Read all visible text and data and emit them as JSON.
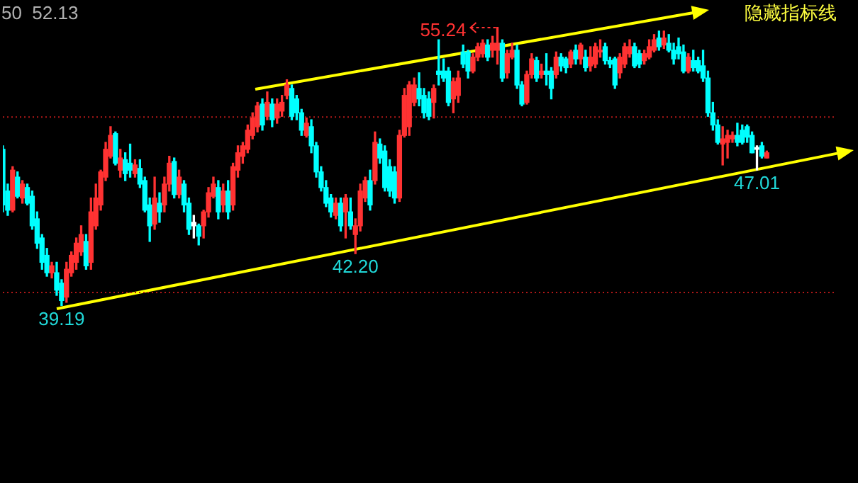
{
  "chart_data": {
    "type": "candlestick",
    "categories": [
      null,
      null,
      null,
      null,
      null,
      null,
      null,
      null,
      null,
      null,
      null,
      null,
      null,
      null,
      null,
      null,
      null,
      null,
      null,
      null,
      null,
      null,
      null,
      null,
      null,
      null,
      null,
      null,
      null,
      null,
      null,
      null,
      null,
      null,
      null,
      null,
      null,
      null,
      null,
      null,
      null,
      null,
      null,
      null,
      null,
      null,
      null,
      null,
      null,
      null,
      null,
      null,
      null,
      null,
      null,
      null,
      null,
      null,
      null,
      null,
      null,
      null,
      null,
      null,
      null,
      null,
      null,
      null,
      null,
      null,
      null,
      null,
      null,
      null,
      null,
      null,
      null,
      null,
      null,
      null,
      null,
      null,
      null,
      null,
      null,
      null,
      null,
      null,
      null,
      null,
      null,
      null,
      null,
      null,
      null,
      null,
      null,
      null,
      null,
      null,
      null,
      null,
      null,
      null,
      null,
      null,
      null,
      null,
      null,
      null,
      null,
      null,
      null,
      null,
      null,
      null,
      null,
      null,
      null,
      null,
      null,
      null,
      null,
      null,
      null,
      null,
      null,
      null,
      null,
      null,
      null,
      null,
      null,
      null,
      null,
      null,
      null,
      null,
      null,
      null,
      null,
      null,
      null,
      null,
      null,
      null,
      null,
      null,
      null,
      null,
      null,
      null,
      null,
      null,
      null,
      null,
      null,
      null,
      null,
      null,
      null,
      null,
      null,
      null,
      null,
      null,
      null,
      null,
      null,
      null,
      null
    ],
    "ohlc": [
      [
        48.2,
        48.4,
        44.6,
        45.0
      ],
      [
        45.8,
        46.2,
        44.4,
        44.7
      ],
      [
        44.7,
        47.2,
        44.6,
        47.0
      ],
      [
        46.6,
        46.9,
        45.4,
        45.5
      ],
      [
        45.4,
        46.4,
        45.1,
        46.2
      ],
      [
        46.0,
        46.2,
        45.0,
        45.1
      ],
      [
        45.5,
        45.8,
        43.6,
        43.8
      ],
      [
        44.2,
        44.6,
        42.5,
        42.8
      ],
      [
        43.1,
        43.3,
        41.3,
        41.7
      ],
      [
        42.1,
        42.5,
        40.9,
        41.1
      ],
      [
        41.1,
        41.7,
        40.8,
        41.5
      ],
      [
        41.1,
        41.7,
        39.8,
        40.1
      ],
      [
        40.5,
        40.7,
        39.19,
        39.5
      ],
      [
        39.7,
        41.7,
        39.4,
        41.3
      ],
      [
        41.1,
        42.3,
        40.9,
        42.1
      ],
      [
        41.7,
        43.1,
        41.3,
        42.8
      ],
      [
        42.3,
        43.8,
        42.1,
        43.3
      ],
      [
        42.9,
        43.3,
        41.3,
        41.5
      ],
      [
        41.7,
        45.4,
        41.3,
        44.6
      ],
      [
        43.8,
        46.2,
        43.6,
        45.4
      ],
      [
        45.0,
        47.0,
        44.7,
        46.9
      ],
      [
        46.6,
        48.6,
        46.4,
        48.2
      ],
      [
        47.8,
        49.5,
        47.7,
        49.0
      ],
      [
        49.1,
        49.2,
        47.3,
        47.4
      ],
      [
        47.0,
        48.2,
        46.6,
        47.7
      ],
      [
        47.6,
        48.0,
        46.4,
        46.8
      ],
      [
        47.4,
        48.5,
        46.6,
        47.0
      ],
      [
        46.8,
        47.6,
        46.6,
        47.3
      ],
      [
        47.1,
        47.6,
        46.0,
        46.2
      ],
      [
        46.4,
        46.6,
        44.6,
        44.7
      ],
      [
        45.0,
        45.4,
        42.9,
        43.8
      ],
      [
        43.9,
        46.6,
        43.6,
        45.4
      ],
      [
        45.1,
        45.7,
        44.0,
        44.6
      ],
      [
        45.0,
        46.6,
        44.6,
        46.2
      ],
      [
        46.2,
        47.8,
        45.8,
        47.4
      ],
      [
        47.5,
        47.7,
        45.4,
        45.6
      ],
      [
        45.6,
        47.0,
        45.4,
        46.6
      ],
      [
        46.2,
        46.4,
        44.6,
        45.0
      ],
      [
        45.1,
        45.4,
        43.3,
        43.6
      ],
      [
        44.0,
        44.4,
        43.1,
        43.8
      ],
      [
        43.8,
        43.9,
        42.7,
        43.2
      ],
      [
        43.8,
        44.7,
        43.1,
        44.6
      ],
      [
        44.6,
        46.0,
        44.3,
        45.7
      ],
      [
        45.5,
        46.6,
        45.4,
        46.2
      ],
      [
        46.0,
        46.4,
        44.2,
        44.6
      ],
      [
        45.0,
        46.2,
        44.6,
        45.8
      ],
      [
        45.8,
        46.4,
        44.2,
        44.6
      ],
      [
        45.0,
        47.4,
        44.7,
        47.2
      ],
      [
        47.0,
        48.4,
        46.6,
        48.0
      ],
      [
        47.8,
        48.6,
        47.4,
        48.4
      ],
      [
        48.2,
        49.6,
        48.0,
        49.3
      ],
      [
        49.0,
        50.3,
        48.8,
        50.0
      ],
      [
        49.5,
        50.9,
        49.2,
        50.7
      ],
      [
        50.8,
        51.1,
        49.3,
        49.6
      ],
      [
        50.1,
        51.5,
        49.9,
        50.9
      ],
      [
        50.8,
        51.1,
        49.5,
        49.9
      ],
      [
        50.0,
        51.1,
        49.7,
        50.8
      ],
      [
        50.4,
        51.3,
        50.1,
        50.9
      ],
      [
        51.3,
        52.2,
        51.1,
        51.9
      ],
      [
        51.7,
        51.9,
        49.9,
        50.1
      ],
      [
        51.1,
        51.3,
        49.9,
        50.3
      ],
      [
        50.3,
        50.5,
        49.0,
        49.3
      ],
      [
        49.0,
        50.0,
        48.9,
        49.7
      ],
      [
        49.5,
        49.9,
        48.0,
        48.4
      ],
      [
        48.4,
        48.6,
        46.6,
        46.9
      ],
      [
        46.9,
        47.2,
        45.8,
        46.0
      ],
      [
        46.0,
        46.4,
        44.9,
        45.1
      ],
      [
        45.4,
        45.6,
        44.3,
        44.6
      ],
      [
        44.4,
        45.4,
        44.2,
        45.1
      ],
      [
        45.1,
        45.4,
        43.5,
        43.8
      ],
      [
        44.6,
        45.6,
        43.1,
        45.4
      ],
      [
        44.6,
        45.4,
        43.6,
        43.8
      ],
      [
        43.3,
        44.2,
        42.2,
        43.8
      ],
      [
        43.8,
        46.2,
        43.5,
        45.8
      ],
      [
        45.4,
        46.6,
        45.2,
        46.4
      ],
      [
        46.4,
        47.0,
        44.7,
        45.0
      ],
      [
        46.4,
        49.2,
        46.2,
        48.6
      ],
      [
        48.5,
        48.8,
        47.4,
        47.7
      ],
      [
        48.1,
        48.4,
        45.8,
        46.0
      ],
      [
        47.2,
        47.6,
        45.5,
        45.8
      ],
      [
        46.9,
        47.2,
        45.1,
        45.4
      ],
      [
        45.4,
        49.3,
        45.2,
        49.0
      ],
      [
        49.0,
        51.7,
        48.9,
        51.3
      ],
      [
        49.5,
        52.1,
        49.0,
        51.9
      ],
      [
        50.9,
        52.3,
        50.7,
        51.9
      ],
      [
        51.7,
        52.6,
        50.7,
        51.1
      ],
      [
        51.3,
        51.7,
        50.0,
        50.3
      ],
      [
        51.1,
        51.5,
        49.9,
        50.1
      ],
      [
        50.9,
        51.9,
        50.0,
        51.7
      ],
      [
        52.7,
        54.5,
        51.9,
        52.5
      ],
      [
        52.7,
        53.4,
        52.1,
        52.3
      ],
      [
        52.7,
        52.9,
        50.7,
        50.9
      ],
      [
        51.1,
        52.3,
        50.3,
        52.1
      ],
      [
        51.3,
        52.7,
        50.9,
        52.3
      ],
      [
        53.8,
        54.2,
        52.9,
        53.1
      ],
      [
        53.8,
        53.9,
        52.3,
        52.7
      ],
      [
        52.7,
        53.7,
        52.6,
        53.5
      ],
      [
        53.5,
        54.3,
        53.3,
        54.1
      ],
      [
        53.7,
        54.5,
        53.5,
        54.3
      ],
      [
        54.2,
        54.5,
        53.3,
        53.5
      ],
      [
        53.9,
        54.7,
        53.5,
        54.3
      ],
      [
        53.9,
        55.24,
        53.1,
        54.3
      ],
      [
        54.3,
        54.5,
        52.1,
        52.3
      ],
      [
        52.6,
        53.9,
        52.3,
        53.7
      ],
      [
        53.5,
        54.3,
        53.4,
        53.9
      ],
      [
        53.9,
        54.2,
        51.7,
        51.9
      ],
      [
        51.9,
        52.1,
        50.7,
        50.8
      ],
      [
        50.9,
        52.7,
        50.8,
        52.5
      ],
      [
        52.5,
        53.7,
        52.3,
        53.4
      ],
      [
        53.3,
        53.5,
        52.1,
        52.3
      ],
      [
        52.5,
        53.1,
        52.3,
        52.7
      ],
      [
        52.7,
        53.7,
        51.9,
        52.5
      ],
      [
        52.7,
        52.9,
        51.1,
        51.7
      ],
      [
        52.5,
        53.8,
        52.3,
        53.5
      ],
      [
        53.5,
        53.7,
        52.7,
        53.0
      ],
      [
        53.4,
        53.5,
        52.6,
        52.9
      ],
      [
        53.1,
        53.9,
        52.9,
        53.8
      ],
      [
        53.9,
        54.2,
        53.1,
        53.4
      ],
      [
        53.4,
        54.3,
        53.1,
        54.2
      ],
      [
        53.5,
        53.9,
        52.7,
        52.9
      ],
      [
        53.0,
        54.1,
        52.7,
        53.5
      ],
      [
        53.1,
        54.3,
        52.9,
        54.1
      ],
      [
        53.8,
        54.5,
        53.5,
        53.9
      ],
      [
        54.1,
        54.3,
        53.1,
        53.3
      ],
      [
        53.3,
        53.5,
        52.9,
        53.1
      ],
      [
        53.4,
        53.5,
        51.7,
        51.9
      ],
      [
        52.6,
        53.7,
        52.3,
        53.5
      ],
      [
        53.1,
        54.3,
        52.9,
        54.1
      ],
      [
        53.7,
        54.5,
        53.5,
        54.1
      ],
      [
        54.1,
        54.3,
        52.9,
        53.0
      ],
      [
        53.7,
        53.9,
        52.9,
        53.1
      ],
      [
        53.3,
        53.9,
        53.1,
        53.7
      ],
      [
        53.5,
        54.5,
        53.4,
        54.1
      ],
      [
        53.9,
        54.8,
        53.8,
        54.5
      ],
      [
        54.6,
        55.0,
        53.9,
        54.1
      ],
      [
        54.2,
        55.0,
        54.0,
        54.6
      ],
      [
        54.3,
        54.8,
        53.8,
        53.9
      ],
      [
        53.9,
        54.3,
        53.1,
        53.4
      ],
      [
        54.1,
        54.6,
        53.4,
        53.7
      ],
      [
        53.8,
        54.2,
        52.6,
        52.7
      ],
      [
        52.7,
        53.7,
        52.6,
        53.5
      ],
      [
        53.3,
        53.9,
        52.7,
        52.9
      ],
      [
        53.3,
        53.5,
        52.6,
        52.7
      ],
      [
        53.0,
        53.9,
        52.1,
        52.3
      ],
      [
        52.3,
        52.7,
        50.1,
        50.3
      ],
      [
        50.3,
        50.9,
        49.3,
        49.6
      ],
      [
        49.6,
        49.9,
        48.5,
        48.6
      ],
      [
        48.5,
        49.5,
        47.3,
        48.8
      ],
      [
        48.6,
        49.3,
        47.7,
        49.0
      ],
      [
        48.8,
        49.2,
        48.6,
        49.0
      ],
      [
        49.0,
        49.7,
        48.4,
        48.6
      ],
      [
        49.3,
        49.6,
        48.5,
        48.6
      ],
      [
        49.5,
        49.6,
        48.6,
        48.9
      ],
      [
        49.0,
        49.2,
        48.0,
        48.0
      ],
      [
        48.3,
        48.4,
        47.01,
        48.2
      ],
      [
        48.4,
        48.6,
        47.7,
        47.8
      ],
      [
        47.7,
        48.1,
        47.7,
        48.0
      ],
      null,
      null,
      null,
      null,
      null,
      null,
      null,
      null,
      null,
      null,
      null,
      null,
      null,
      null
    ],
    "colors": [
      "#00ffff",
      "#00ffff",
      "#ff3232",
      "#00ffff",
      "#ff3232",
      "#00ffff",
      "#00ffff",
      "#00ffff",
      "#00ffff",
      "#00ffff",
      "#ff3232",
      "#00ffff",
      "#00ffff",
      "#ff3232",
      "#ff3232",
      "#ff3232",
      "#ff3232",
      "#00ffff",
      "#ff3232",
      "#ff3232",
      "#ff3232",
      "#ff3232",
      "#ff3232",
      "#00ffff",
      "#ff3232",
      "#00ffff",
      "#00ffff",
      "#ff3232",
      "#00ffff",
      "#00ffff",
      "#00ffff",
      "#ff3232",
      "#00ffff",
      "#ff3232",
      "#ff3232",
      "#00ffff",
      "#ff3232",
      "#00ffff",
      "#00ffff",
      "#ffffff",
      "#00ffff",
      "#ff3232",
      "#ff3232",
      "#ff3232",
      "#00ffff",
      "#ff3232",
      "#00ffff",
      "#ff3232",
      "#ff3232",
      "#ff3232",
      "#ff3232",
      "#ff3232",
      "#ff3232",
      "#00ffff",
      "#ff3232",
      "#00ffff",
      "#ff3232",
      "#ff3232",
      "#ff3232",
      "#00ffff",
      "#00ffff",
      "#00ffff",
      "#ff3232",
      "#00ffff",
      "#00ffff",
      "#00ffff",
      "#00ffff",
      "#00ffff",
      "#ff3232",
      "#00ffff",
      "#ff3232",
      "#00ffff",
      "#ff3232",
      "#ff3232",
      "#ff3232",
      "#00ffff",
      "#ff3232",
      "#00ffff",
      "#00ffff",
      "#00ffff",
      "#00ffff",
      "#ff3232",
      "#ff3232",
      "#ff3232",
      "#ff3232",
      "#00ffff",
      "#00ffff",
      "#00ffff",
      "#ff3232",
      "#00ffff",
      "#00ffff",
      "#00ffff",
      "#ff3232",
      "#ff3232",
      "#00ffff",
      "#00ffff",
      "#ff3232",
      "#ff3232",
      "#ff3232",
      "#00ffff",
      "#ff3232",
      "#ff3232",
      "#00ffff",
      "#ff3232",
      "#ff3232",
      "#00ffff",
      "#00ffff",
      "#ff3232",
      "#ff3232",
      "#00ffff",
      "#ff3232",
      "#00ffff",
      "#00ffff",
      "#ff3232",
      "#00ffff",
      "#00ffff",
      "#ff3232",
      "#00ffff",
      "#ff3232",
      "#00ffff",
      "#ff3232",
      "#ff3232",
      "#ff3232",
      "#00ffff",
      "#00ffff",
      "#00ffff",
      "#ff3232",
      "#ff3232",
      "#ff3232",
      "#00ffff",
      "#00ffff",
      "#ff3232",
      "#ff3232",
      "#ff3232",
      "#00ffff",
      "#ff3232",
      "#00ffff",
      "#00ffff",
      "#00ffff",
      "#00ffff",
      "#ff3232",
      "#00ffff",
      "#00ffff",
      "#00ffff",
      "#00ffff",
      "#00ffff",
      "#00ffff",
      "#ff3232",
      "#ff3232",
      "#ff3232",
      "#00ffff",
      "#00ffff",
      "#00ffff",
      "#00ffff",
      "#ffffff",
      "#00ffff",
      "#ff3232",
      null,
      null,
      null,
      null,
      null,
      null,
      null,
      null,
      null,
      null,
      null,
      null,
      null,
      null
    ],
    "tick_labels": false,
    "ref_lines": [
      {
        "axis": "y",
        "value": 50.1,
        "color": "#b01818",
        "line_style": "dotted"
      },
      {
        "axis": "y",
        "value": 40.0,
        "color": "#b01818",
        "line_style": "dotted"
      }
    ],
    "annotations": [
      "50  52.13",
      "隐藏指标线",
      "55.24",
      {
        "text": "42.20",
        "y": 42.2
      },
      {
        "text": "39.19",
        "y": 39.19
      },
      {
        "text": "47.01",
        "y": 47.01
      }
    ]
  }
}
